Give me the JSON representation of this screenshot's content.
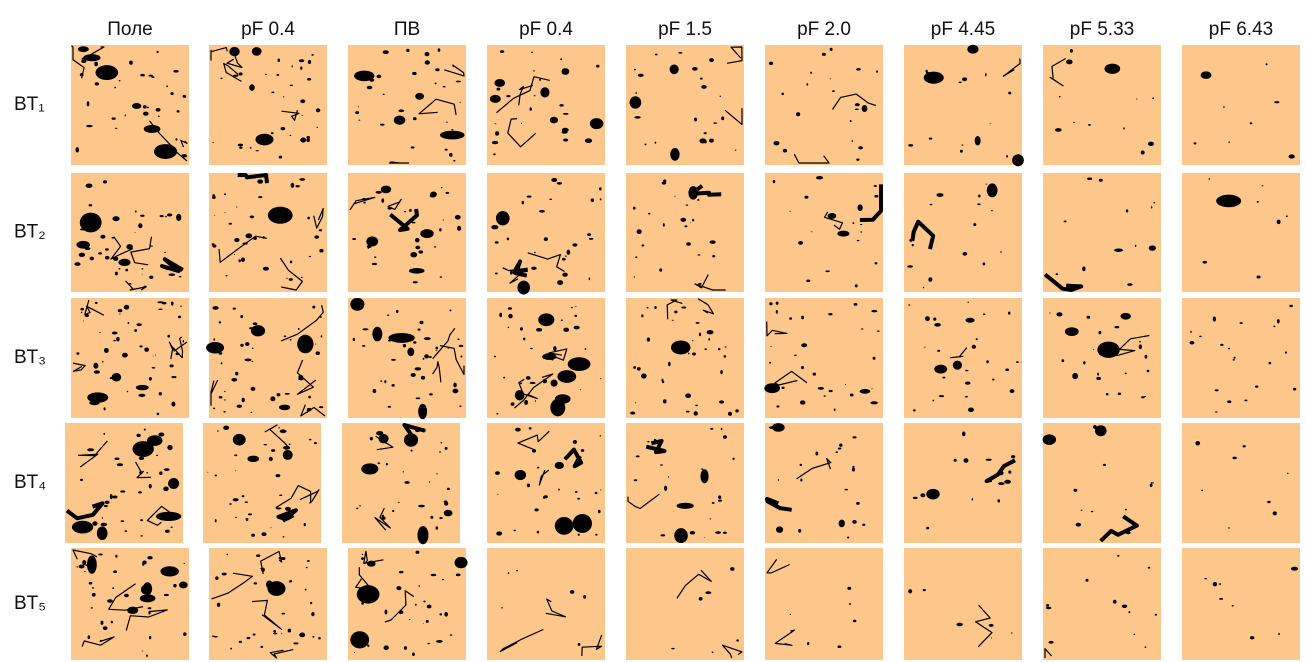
{
  "column_headers": [
    "Поле",
    "pF 0.4",
    "ПВ",
    "pF 0.4",
    "pF 1.5",
    "pF 2.0",
    "pF 4.45",
    "pF 5.33",
    "pF 6.43"
  ],
  "row_labels": [
    "BT₁",
    "BT₂",
    "BT₃",
    "BT₄",
    "BT₅"
  ]
}
